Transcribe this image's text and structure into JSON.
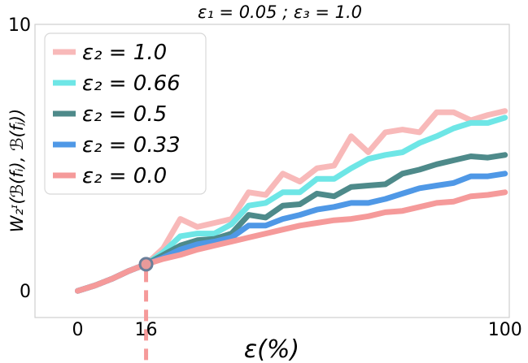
{
  "chart_data": {
    "type": "line",
    "title": "ε₁ = 0.05 ; ε₃ = 1.0",
    "xlabel": "ε(%)",
    "ylabel": "W₂ᶦ(ℬ(fᵢ), ℬ(fⱼ))",
    "xlim": [
      -10,
      101
    ],
    "ylim": [
      -1,
      10
    ],
    "xticks": [
      {
        "value": 0,
        "label": "0"
      },
      {
        "value": 16,
        "label": "16"
      },
      {
        "value": 100,
        "label": "100"
      }
    ],
    "yticks": [
      {
        "value": 0,
        "label": "0"
      },
      {
        "value": 10,
        "label": "10"
      }
    ],
    "grid": false,
    "legend_position": "top-left",
    "x": [
      0,
      4,
      8,
      12,
      16,
      20,
      24,
      28,
      32,
      36,
      40,
      44,
      48,
      52,
      56,
      60,
      64,
      68,
      72,
      76,
      80,
      84,
      88,
      92,
      96,
      100
    ],
    "series": [
      {
        "name": "ε₂ = 1.0",
        "color": "#f8b9b9",
        "values": [
          0,
          0.2,
          0.45,
          0.75,
          1.0,
          1.6,
          2.7,
          2.4,
          2.55,
          2.7,
          3.7,
          3.6,
          4.4,
          4.1,
          4.6,
          4.7,
          5.8,
          5.2,
          5.95,
          6.05,
          5.95,
          6.7,
          6.7,
          6.4,
          6.6,
          6.75
        ]
      },
      {
        "name": "ε₂ = 0.66",
        "color": "#6ee6e6",
        "values": [
          0,
          0.2,
          0.45,
          0.75,
          1.0,
          1.45,
          2.05,
          2.15,
          2.15,
          2.5,
          3.2,
          3.3,
          3.7,
          3.7,
          4.2,
          4.2,
          4.6,
          4.95,
          5.1,
          5.2,
          5.55,
          5.8,
          6.1,
          6.3,
          6.3,
          6.5
        ]
      },
      {
        "name": "ε₂ = 0.5",
        "color": "#4e8a8a",
        "values": [
          0,
          0.2,
          0.45,
          0.75,
          1.0,
          1.35,
          1.7,
          1.9,
          1.95,
          2.15,
          2.85,
          2.75,
          3.2,
          3.25,
          3.65,
          3.55,
          3.9,
          3.95,
          4.0,
          4.4,
          4.55,
          4.75,
          4.9,
          5.05,
          5.0,
          5.1
        ]
      },
      {
        "name": "ε₂ = 0.33",
        "color": "#4f98e6",
        "values": [
          0,
          0.2,
          0.45,
          0.75,
          1.0,
          1.25,
          1.55,
          1.75,
          1.85,
          2.0,
          2.45,
          2.45,
          2.7,
          2.85,
          3.05,
          3.15,
          3.3,
          3.3,
          3.45,
          3.65,
          3.85,
          3.95,
          4.05,
          4.3,
          4.3,
          4.4
        ]
      },
      {
        "name": "ε₂ = 0.0",
        "color": "#f59a9a",
        "values": [
          0,
          0.2,
          0.45,
          0.75,
          1.0,
          1.2,
          1.35,
          1.55,
          1.7,
          1.85,
          2.0,
          2.15,
          2.3,
          2.45,
          2.55,
          2.65,
          2.7,
          2.8,
          2.95,
          3.0,
          3.15,
          3.3,
          3.35,
          3.55,
          3.6,
          3.7
        ]
      }
    ],
    "marker": {
      "x": 16,
      "y": 1.0,
      "color": "#e89a9a",
      "edge_color": "#6a7f9a"
    },
    "dashed_guide": {
      "x": 16,
      "color": "#f59a9a"
    }
  }
}
